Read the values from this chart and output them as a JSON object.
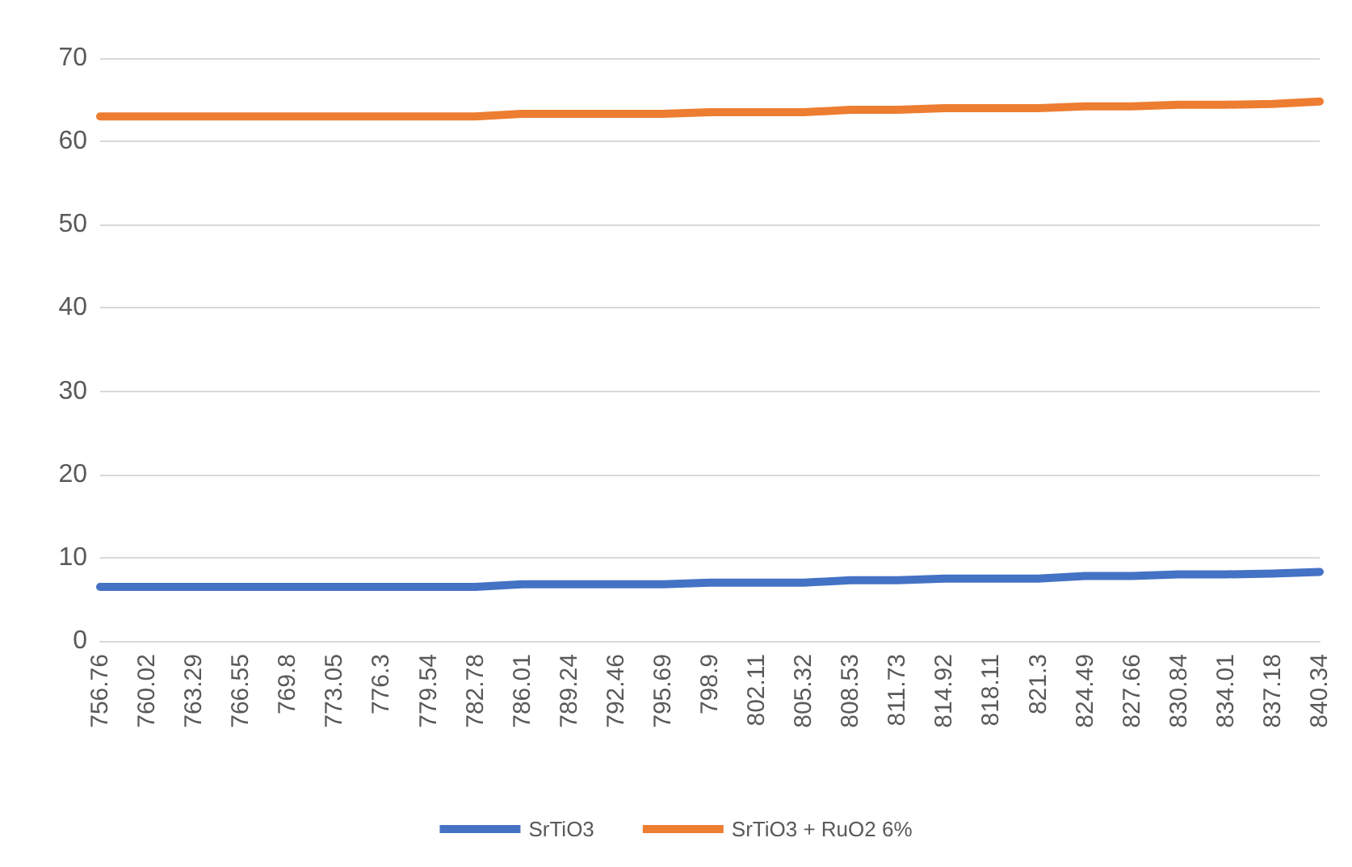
{
  "chart_data": {
    "type": "line",
    "categories": [
      "756.76",
      "760.02",
      "763.29",
      "766.55",
      "769.8",
      "773.05",
      "776.3",
      "779.54",
      "782.78",
      "786.01",
      "789.24",
      "792.46",
      "795.69",
      "798.9",
      "802.11",
      "805.32",
      "808.53",
      "811.73",
      "814.92",
      "818.11",
      "821.3",
      "824.49",
      "827.66",
      "830.84",
      "834.01",
      "837.18",
      "840.34"
    ],
    "series": [
      {
        "name": "SrTiO3",
        "color": "#4472c4",
        "values": [
          6.5,
          6.5,
          6.5,
          6.5,
          6.5,
          6.5,
          6.5,
          6.5,
          6.5,
          6.8,
          6.8,
          6.8,
          6.8,
          7.0,
          7.0,
          7.0,
          7.3,
          7.3,
          7.5,
          7.5,
          7.5,
          7.8,
          7.8,
          8.0,
          8.0,
          8.1,
          8.3
        ]
      },
      {
        "name": "SrTiO3 + RuO2 6%",
        "color": "#ed7d31",
        "values": [
          63.0,
          63.0,
          63.0,
          63.0,
          63.0,
          63.0,
          63.0,
          63.0,
          63.0,
          63.3,
          63.3,
          63.3,
          63.3,
          63.5,
          63.5,
          63.5,
          63.8,
          63.8,
          64.0,
          64.0,
          64.0,
          64.2,
          64.2,
          64.4,
          64.4,
          64.5,
          64.8
        ]
      }
    ],
    "ylim": [
      0,
      70
    ],
    "yticks": [
      0,
      10,
      20,
      30,
      40,
      50,
      60,
      70
    ],
    "grid": "y",
    "legend": "bottom",
    "marker": "none",
    "line_style": "solid"
  }
}
